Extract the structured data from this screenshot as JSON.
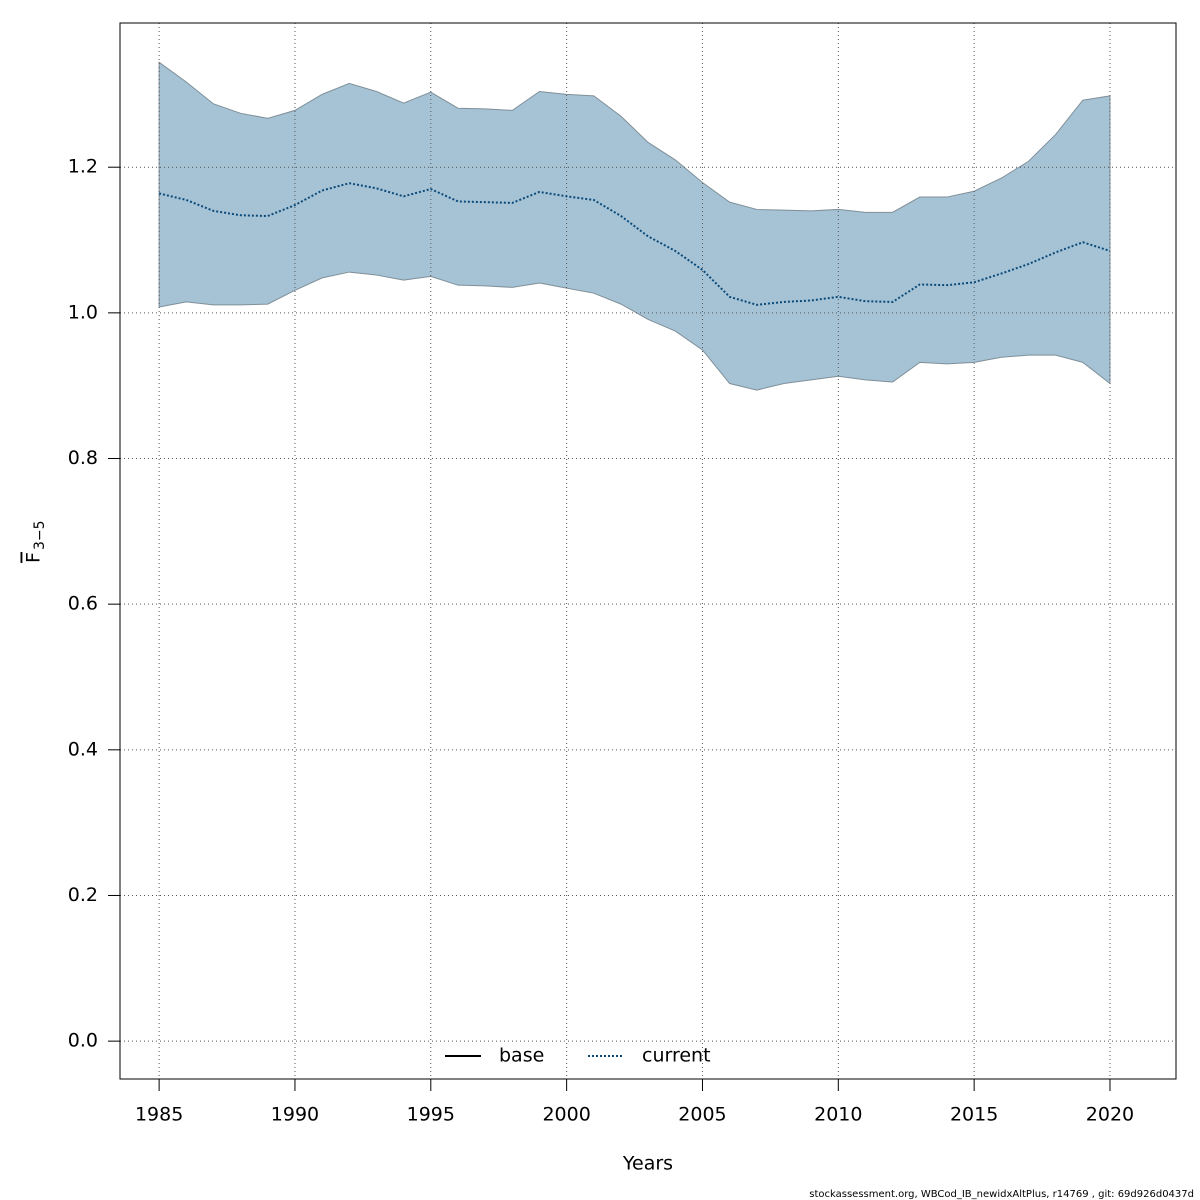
{
  "chart_data": {
    "type": "line",
    "xlabel": "Years",
    "ylabel": "F",
    "ylabel_subscript": "3−5",
    "footer": "stockassessment.org, WBCod_IB_newidxAltPlus, r14769 , git: 69d926d0437d",
    "x": [
      1985,
      1986,
      1987,
      1988,
      1989,
      1990,
      1991,
      1992,
      1993,
      1994,
      1995,
      1996,
      1997,
      1998,
      1999,
      2000,
      2001,
      2002,
      2003,
      2004,
      2005,
      2006,
      2007,
      2008,
      2009,
      2010,
      2011,
      2012,
      2013,
      2014,
      2015,
      2016,
      2017,
      2018,
      2019,
      2020
    ],
    "band": {
      "color": "#a5c3d5",
      "upper": [
        1.344,
        1.317,
        1.287,
        1.274,
        1.267,
        1.278,
        1.3,
        1.315,
        1.304,
        1.288,
        1.303,
        1.281,
        1.28,
        1.278,
        1.304,
        1.3,
        1.298,
        1.27,
        1.234,
        1.21,
        1.179,
        1.152,
        1.142,
        1.141,
        1.14,
        1.142,
        1.138,
        1.138,
        1.159,
        1.159,
        1.167,
        1.185,
        1.208,
        1.245,
        1.292,
        1.298
      ],
      "lower": [
        1.008,
        1.015,
        1.011,
        1.011,
        1.012,
        1.031,
        1.048,
        1.056,
        1.052,
        1.045,
        1.05,
        1.038,
        1.037,
        1.035,
        1.041,
        1.034,
        1.027,
        1.012,
        0.991,
        0.975,
        0.949,
        0.903,
        0.894,
        0.903,
        0.908,
        0.913,
        0.908,
        0.905,
        0.932,
        0.93,
        0.932,
        0.939,
        0.942,
        0.942,
        0.932,
        0.903
      ]
    },
    "series": [
      {
        "name": "base",
        "color": "#000000",
        "dash": false,
        "values": [
          null,
          null,
          null,
          null,
          null,
          null,
          null,
          null,
          null,
          null,
          null,
          null,
          null,
          null,
          null,
          null,
          null,
          null,
          null,
          null,
          null,
          null,
          null,
          null,
          null,
          null,
          null,
          null,
          null,
          null,
          null,
          null,
          null,
          null,
          null,
          null
        ]
      },
      {
        "name": "current",
        "color": "#0a4a7a",
        "dash": true,
        "values": [
          1.164,
          1.155,
          1.14,
          1.134,
          1.133,
          1.148,
          1.168,
          1.178,
          1.171,
          1.16,
          1.17,
          1.153,
          1.152,
          1.151,
          1.166,
          1.16,
          1.155,
          1.133,
          1.105,
          1.085,
          1.059,
          1.022,
          1.011,
          1.015,
          1.017,
          1.022,
          1.016,
          1.015,
          1.039,
          1.038,
          1.042,
          1.054,
          1.067,
          1.083,
          1.097,
          1.085
        ]
      }
    ],
    "xlim": [
      1983.56,
      2022.43
    ],
    "ylim": [
      -0.052,
      1.398
    ],
    "xticks": [
      1985,
      1990,
      1995,
      2000,
      2005,
      2010,
      2015,
      2020
    ],
    "yticks": [
      {
        "value": 0,
        "label": "0.0"
      },
      0.2,
      0.4,
      0.6,
      0.8,
      {
        "value": 1,
        "label": "1.0"
      },
      1.2
    ],
    "grid": true,
    "legend": "bottom"
  }
}
